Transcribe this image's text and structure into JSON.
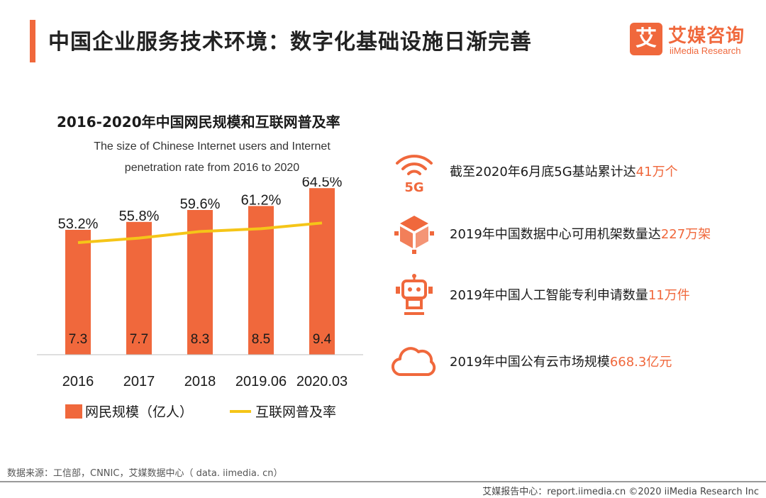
{
  "header": {
    "title": "中国企业服务技术环境：数字化基础设施日渐完善",
    "brand_cn": "艾媒咨询",
    "brand_en": "iiMedia Research",
    "brand_mark": "艾"
  },
  "chart_data": {
    "type": "bar",
    "title": "2016-2020年中国网民规模和互联网普及率",
    "subtitle_line1": "The size of Chinese Internet users and Internet",
    "subtitle_line2": "penetration rate from 2016 to 2020",
    "categories": [
      "2016",
      "2017",
      "2018",
      "2019.06",
      "2020.03"
    ],
    "series": [
      {
        "name": "网民规模（亿人）",
        "type": "bar",
        "values": [
          7.3,
          7.7,
          8.3,
          8.5,
          9.4
        ],
        "labels": [
          "7.3",
          "7.7",
          "8.3",
          "8.5",
          "9.4"
        ],
        "color": "#f0683c"
      },
      {
        "name": "互联网普及率",
        "type": "line",
        "values": [
          53.2,
          55.8,
          59.6,
          61.2,
          64.5
        ],
        "labels": [
          "53.2%",
          "55.8%",
          "59.6%",
          "61.2%",
          "64.5%"
        ],
        "color": "#f5c518"
      }
    ],
    "grid": false,
    "legend_position": "bottom-left"
  },
  "facts": [
    {
      "icon": "5g-signal-icon",
      "prefix": "截至2020年6月底5G基站累计达",
      "highlight": "41万个"
    },
    {
      "icon": "data-cube-icon",
      "prefix": "2019年中国数据中心可用机架数量达",
      "highlight": "227万架"
    },
    {
      "icon": "robot-icon",
      "prefix": "2019年中国人工智能专利申请数量",
      "highlight": "11万件"
    },
    {
      "icon": "cloud-icon",
      "prefix": "2019年中国公有云市场规模",
      "highlight": "668.3亿元"
    }
  ],
  "footer": {
    "source": "数据来源：工信部，CNNIC，艾媒数据中心（ data. iimedia. cn）",
    "credit": "艾媒报告中心：report.iimedia.cn  ©2020  iiMedia Research  Inc"
  },
  "colors": {
    "accent": "#f0683c",
    "line": "#f5c518"
  }
}
